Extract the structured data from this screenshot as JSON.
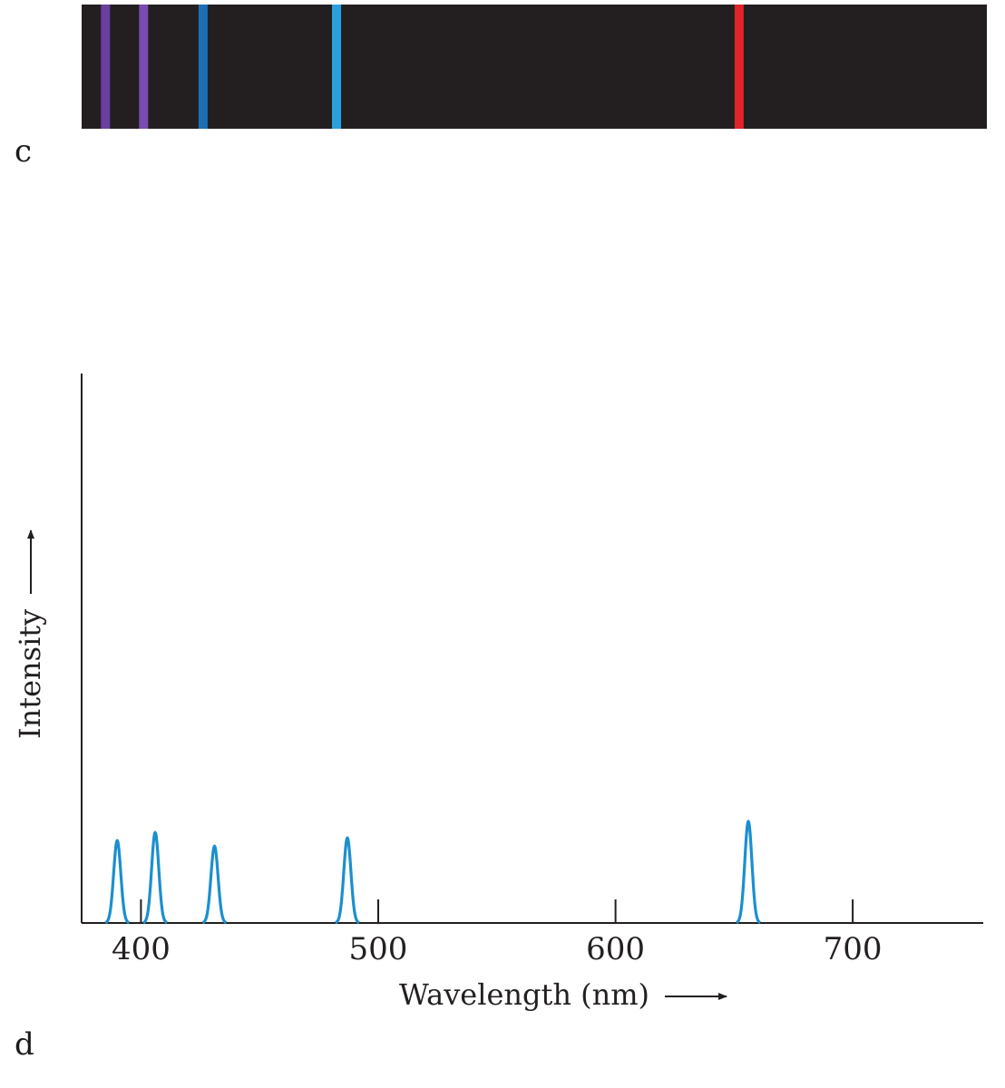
{
  "panels": {
    "c_label": "c",
    "d_label": "d"
  },
  "chart_data": [
    {
      "type": "spectrum-strip",
      "panel": "c",
      "background_color": "#231f20",
      "wavelength_range": [
        380,
        760
      ],
      "lines": [
        {
          "wavelength": 390,
          "color": "#6a3fa0"
        },
        {
          "wavelength": 406,
          "color": "#7a4bb0"
        },
        {
          "wavelength": 431,
          "color": "#1b6fb5"
        },
        {
          "wavelength": 487,
          "color": "#2aa0dc"
        },
        {
          "wavelength": 656,
          "color": "#e0242a"
        }
      ]
    },
    {
      "type": "line",
      "panel": "d",
      "xlabel": "Wavelength (nm)",
      "ylabel": "Intensity",
      "xlim": [
        375,
        755
      ],
      "ylim": [
        0,
        1
      ],
      "xticks": [
        400,
        500,
        600,
        700
      ],
      "xtick_labels": [
        "400",
        "500",
        "600",
        "700"
      ],
      "line_color": "#1b8fd0",
      "grid": false,
      "peaks": [
        {
          "wavelength": 390,
          "intensity": 0.15
        },
        {
          "wavelength": 406,
          "intensity": 0.165
        },
        {
          "wavelength": 431,
          "intensity": 0.14
        },
        {
          "wavelength": 487,
          "intensity": 0.155
        },
        {
          "wavelength": 656,
          "intensity": 0.185
        }
      ]
    }
  ]
}
